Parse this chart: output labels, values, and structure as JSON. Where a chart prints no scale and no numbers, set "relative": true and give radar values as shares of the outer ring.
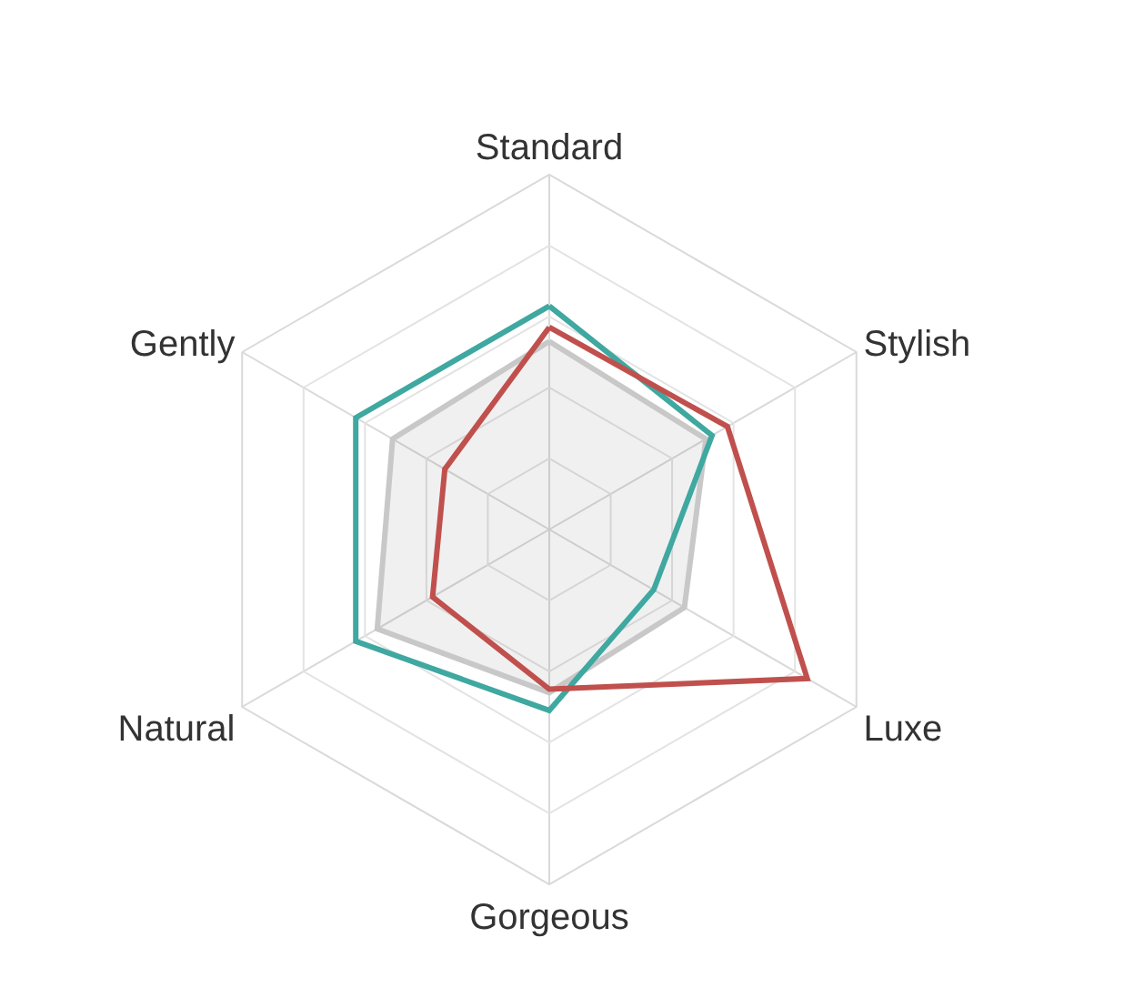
{
  "chart_data": {
    "type": "radar",
    "relative": true,
    "grid": true,
    "categories": [
      "Standard",
      "Stylish",
      "Luxe",
      "Gorgeous",
      "Natural",
      "Gently"
    ],
    "series": [
      {
        "type": "area",
        "color": "#c8c8c8",
        "values": [
          0.53,
          0.51,
          0.44,
          0.46,
          0.56,
          0.51
        ]
      },
      {
        "color": "#3fa8a0",
        "values": [
          0.63,
          0.53,
          0.34,
          0.51,
          0.63,
          0.63
        ]
      },
      {
        "color": "#c0504d",
        "values": [
          0.57,
          0.58,
          0.84,
          0.45,
          0.38,
          0.34
        ]
      }
    ]
  }
}
